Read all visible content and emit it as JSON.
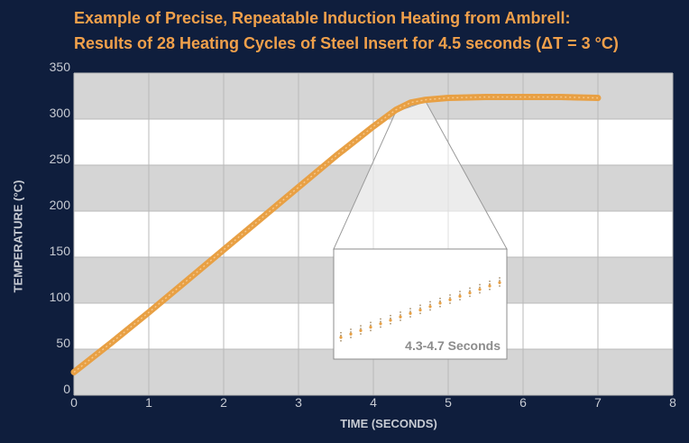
{
  "chart_data": {
    "type": "line",
    "title_line1": "Example of Precise, Repeatable Induction Heating from Ambrell:",
    "title_line2": "Results of 28 Heating Cycles of Steel Insert for 4.5 seconds (ΔT = 3 °C)",
    "xlabel": "TIME (SECONDS)",
    "ylabel": "TEMPERATURE (°C)",
    "xlim": [
      0,
      8
    ],
    "ylim": [
      0,
      350
    ],
    "xticks": [
      0,
      1,
      2,
      3,
      4,
      5,
      6,
      7,
      8
    ],
    "yticks": [
      0,
      50,
      100,
      150,
      200,
      250,
      300,
      350
    ],
    "grid": true,
    "series": [
      {
        "color": "#e8a044",
        "x": [
          0,
          0.5,
          1,
          1.5,
          2,
          2.5,
          3,
          3.5,
          4,
          4.3,
          4.5,
          4.7,
          5,
          5.5,
          6,
          6.5,
          7
        ],
        "y": [
          25,
          57,
          90,
          124,
          158,
          192,
          226,
          260,
          292,
          310,
          318,
          321,
          323,
          324,
          324,
          324,
          323
        ]
      }
    ],
    "inset": {
      "label": "4.3-4.7 Seconds",
      "x_range": [
        4.3,
        4.7
      ]
    }
  }
}
